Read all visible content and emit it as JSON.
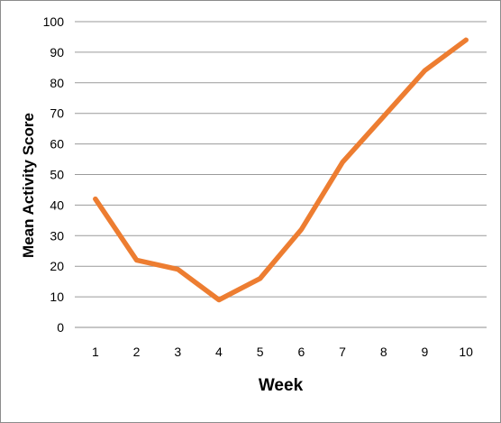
{
  "chart_data": {
    "type": "line",
    "title": "",
    "xlabel": "Week",
    "ylabel": "Mean Activity Score",
    "categories": [
      "1",
      "2",
      "3",
      "4",
      "5",
      "6",
      "7",
      "8",
      "9",
      "10"
    ],
    "series": [
      {
        "values": [
          42,
          22,
          19,
          9,
          16,
          32,
          54,
          69,
          84,
          94
        ],
        "color": "#ed7d31"
      }
    ],
    "ylim": [
      0,
      100
    ],
    "yticks": [
      0,
      10,
      20,
      30,
      40,
      50,
      60,
      70,
      80,
      90,
      100
    ],
    "grid": "horizontal",
    "legend": "none"
  }
}
